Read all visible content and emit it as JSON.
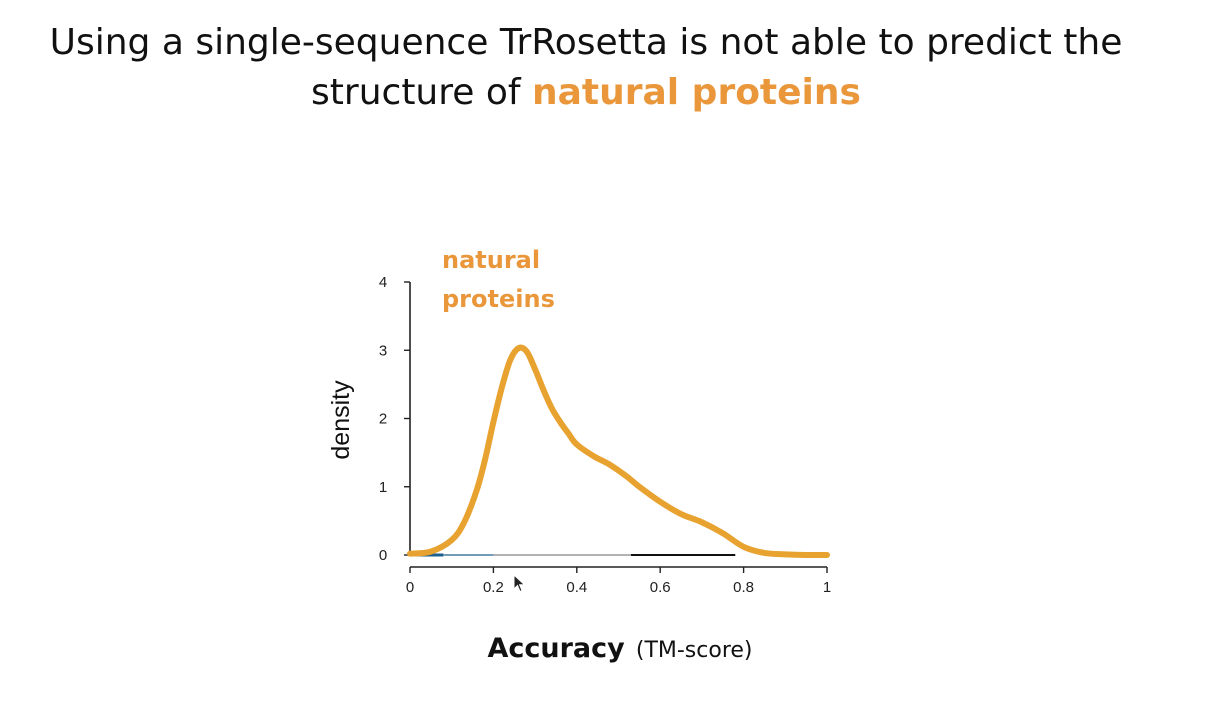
{
  "slide": {
    "title_line1": "Using a single-sequence TrRosetta is not able to predict the",
    "title_line2_prefix": "structure of ",
    "title_line2_highlight": "natural proteins",
    "highlight_color": "#e9973a"
  },
  "chart_data": {
    "type": "line",
    "title": "",
    "xlabel_bold": "Accuracy",
    "xlabel_rest": "(TM-score)",
    "ylabel": "density",
    "xlim": [
      0,
      1
    ],
    "ylim": [
      0,
      4
    ],
    "xticks": [
      0,
      0.2,
      0.4,
      0.6,
      0.8,
      1
    ],
    "xtick_labels": [
      "0",
      "0.2",
      "0.4",
      "0.6",
      "0.8",
      "1"
    ],
    "yticks": [
      0,
      1,
      2,
      3,
      4
    ],
    "ytick_labels": [
      "0",
      "1",
      "2",
      "3",
      "4"
    ],
    "grid": false,
    "series": [
      {
        "name": "natural proteins",
        "color": "#e8a22f",
        "x": [
          0,
          0.05,
          0.1,
          0.13,
          0.16,
          0.18,
          0.2,
          0.22,
          0.24,
          0.26,
          0.28,
          0.3,
          0.32,
          0.34,
          0.36,
          0.38,
          0.4,
          0.44,
          0.48,
          0.52,
          0.55,
          0.6,
          0.65,
          0.7,
          0.75,
          0.8,
          0.85,
          0.9,
          0.95,
          1.0
        ],
        "y": [
          0.02,
          0.05,
          0.22,
          0.48,
          0.95,
          1.4,
          1.95,
          2.45,
          2.85,
          3.03,
          2.98,
          2.72,
          2.42,
          2.15,
          1.95,
          1.78,
          1.62,
          1.45,
          1.32,
          1.15,
          1.0,
          0.78,
          0.6,
          0.48,
          0.32,
          0.12,
          0.03,
          0.01,
          0.0,
          0.0
        ]
      }
    ],
    "series_label": "natural proteins",
    "series_label_line1": "natural",
    "series_label_line2": "proteins"
  }
}
